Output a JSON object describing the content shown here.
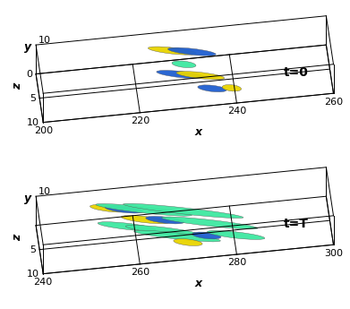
{
  "chart_data": [
    {
      "type": "isosurface_3d",
      "annotation": "t=0",
      "x_label": "x",
      "y_label": "y",
      "z_label": "z",
      "xlim": [
        200,
        260
      ],
      "xticks": [
        200,
        220,
        240,
        260
      ],
      "ylim": [
        0,
        10
      ],
      "yticks": [
        10
      ],
      "zlim": [
        0,
        10
      ],
      "zticks": [
        0,
        5,
        10
      ],
      "structures": [
        {
          "x": 228,
          "y": 5,
          "z": 1.0,
          "length": 10,
          "color": "#e8d400"
        },
        {
          "x": 232,
          "y": 5,
          "z": 1.6,
          "length": 10,
          "color": "#1f5fd0"
        },
        {
          "x": 230,
          "y": 5,
          "z": 4.0,
          "length": 5,
          "color": "#3ee8a0"
        },
        {
          "x": 229,
          "y": 5,
          "z": 6.0,
          "length": 10,
          "color": "#1f5fd0"
        },
        {
          "x": 233,
          "y": 5,
          "z": 6.6,
          "length": 10,
          "color": "#e8d400"
        },
        {
          "x": 235,
          "y": 5,
          "z": 9.5,
          "length": 6,
          "color": "#1f5fd0"
        },
        {
          "x": 239,
          "y": 5,
          "z": 9.8,
          "length": 4,
          "color": "#e8d400"
        }
      ]
    },
    {
      "type": "isosurface_3d",
      "annotation": "t=T",
      "x_label": "x",
      "y_label": "y",
      "z_label": "z",
      "xlim": [
        240,
        300
      ],
      "xticks": [
        240,
        260,
        280,
        300
      ],
      "ylim": [
        0,
        10
      ],
      "yticks": [
        10
      ],
      "zlim": [
        0,
        10
      ],
      "zticks": [
        5,
        10
      ],
      "structures": [
        {
          "x": 255,
          "y": 5,
          "z": 1.0,
          "length": 8,
          "color": "#e8d400"
        },
        {
          "x": 258,
          "y": 5,
          "z": 1.5,
          "length": 8,
          "color": "#1f5fd0"
        },
        {
          "x": 262,
          "y": 5,
          "z": 2.0,
          "length": 20,
          "color": "#3ee8a0"
        },
        {
          "x": 270,
          "y": 5,
          "z": 3.0,
          "length": 25,
          "color": "#3ee8a0"
        },
        {
          "x": 262,
          "y": 5,
          "z": 4.0,
          "length": 10,
          "color": "#e8d400"
        },
        {
          "x": 266,
          "y": 5,
          "z": 4.5,
          "length": 8,
          "color": "#1f5fd0"
        },
        {
          "x": 258,
          "y": 5,
          "z": 5.0,
          "length": 12,
          "color": "#3ee8a0"
        },
        {
          "x": 275,
          "y": 5,
          "z": 6.0,
          "length": 20,
          "color": "#3ee8a0"
        },
        {
          "x": 265,
          "y": 5,
          "z": 6.5,
          "length": 15,
          "color": "#3ee8a0"
        },
        {
          "x": 268,
          "y": 5,
          "z": 8.0,
          "length": 18,
          "color": "#3ee8a0"
        },
        {
          "x": 274,
          "y": 5,
          "z": 8.5,
          "length": 6,
          "color": "#1f5fd0"
        },
        {
          "x": 280,
          "y": 5,
          "z": 9.0,
          "length": 12,
          "color": "#3ee8a0"
        },
        {
          "x": 270,
          "y": 5,
          "z": 9.5,
          "length": 6,
          "color": "#e8d400"
        }
      ]
    }
  ]
}
